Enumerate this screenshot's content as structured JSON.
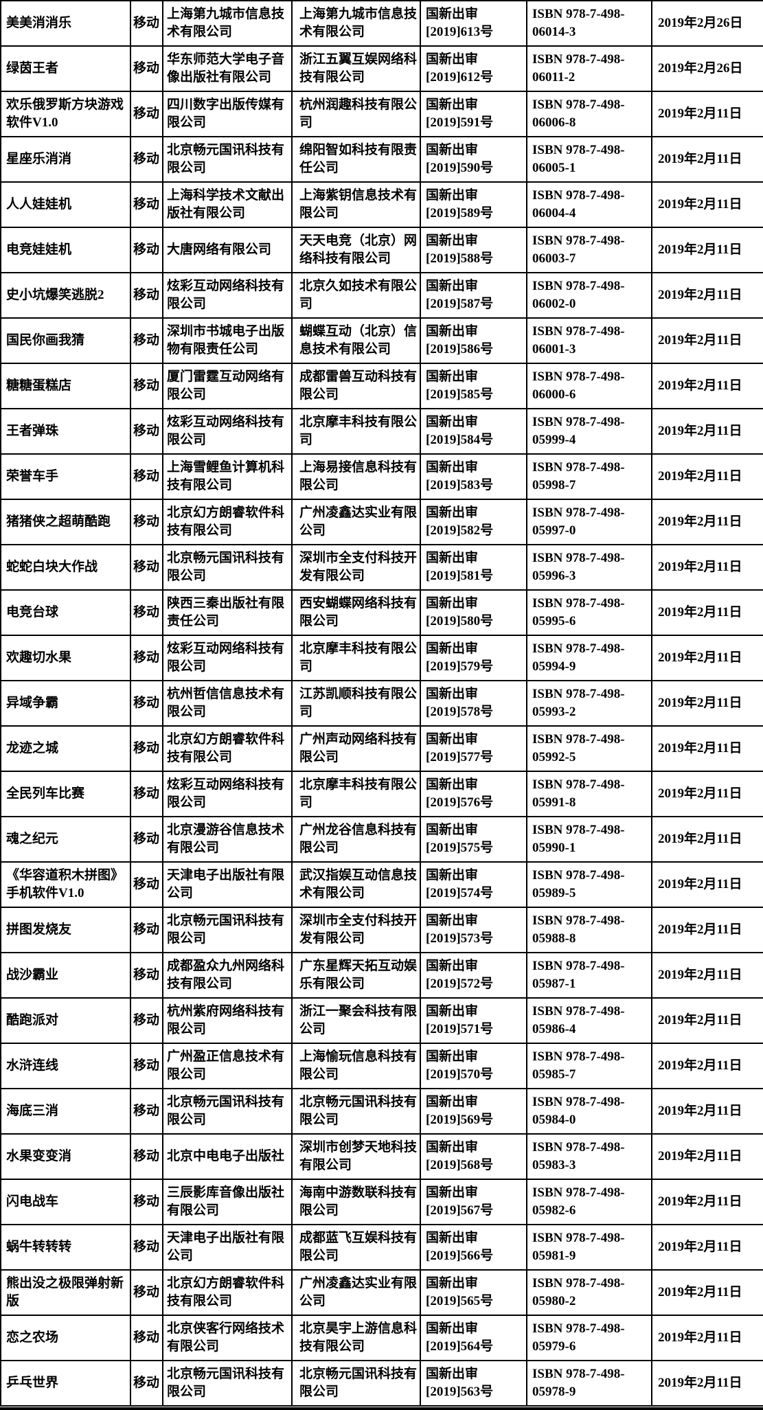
{
  "colors": {
    "border": "#000000",
    "background": "#ffffff",
    "text": "#000000"
  },
  "table": {
    "rows": [
      {
        "name": "美美消消乐",
        "platform": "移动",
        "publisher": "上海第九城市信息技术有限公司",
        "operator": "上海第九城市信息技术有限公司",
        "approval_no": "国新出审[2019]613号",
        "isbn": "ISBN 978-7-498-06014-3",
        "date": "2019年2月26日"
      },
      {
        "name": "绿茵王者",
        "platform": "移动",
        "publisher": "华东师范大学电子音像出版社有限公司",
        "operator": "浙江五翼互娱网络科技有限公司",
        "approval_no": "国新出审[2019]612号",
        "isbn": "ISBN 978-7-498-06011-2",
        "date": "2019年2月26日"
      },
      {
        "name": "欢乐俄罗斯方块游戏软件V1.0",
        "platform": "移动",
        "publisher": "四川数字出版传媒有限公司",
        "operator": "杭州润趣科技有限公司",
        "approval_no": "国新出审[2019]591号",
        "isbn": "ISBN 978-7-498-06006-8",
        "date": "2019年2月11日"
      },
      {
        "name": "星座乐消消",
        "platform": "移动",
        "publisher": "北京畅元国讯科技有限公司",
        "operator": "绵阳智如科技有限责任公司",
        "approval_no": "国新出审[2019]590号",
        "isbn": "ISBN 978-7-498-06005-1",
        "date": "2019年2月11日"
      },
      {
        "name": "人人娃娃机",
        "platform": "移动",
        "publisher": "上海科学技术文献出版社有限公司",
        "operator": "上海紫钥信息技术有限公司",
        "approval_no": "国新出审[2019]589号",
        "isbn": "ISBN 978-7-498-06004-4",
        "date": "2019年2月11日"
      },
      {
        "name": "电竞娃娃机",
        "platform": "移动",
        "publisher": "大唐网络有限公司",
        "operator": "天天电竞（北京）网络科技有限公司",
        "approval_no": "国新出审[2019]588号",
        "isbn": "ISBN 978-7-498-06003-7",
        "date": "2019年2月11日"
      },
      {
        "name": "史小坑爆笑逃脱2",
        "platform": "移动",
        "publisher": "炫彩互动网络科技有限公司",
        "operator": "北京久如技术有限公司",
        "approval_no": "国新出审[2019]587号",
        "isbn": "ISBN 978-7-498-06002-0",
        "date": "2019年2月11日"
      },
      {
        "name": "国民你画我猜",
        "platform": "移动",
        "publisher": "深圳市书城电子出版物有限责任公司",
        "operator": "蝴蝶互动（北京）信息技术有限公司",
        "approval_no": "国新出审[2019]586号",
        "isbn": "ISBN 978-7-498-06001-3",
        "date": "2019年2月11日"
      },
      {
        "name": "糖糖蛋糕店",
        "platform": "移动",
        "publisher": "厦门雷霆互动网络有限公司",
        "operator": "成都雷兽互动科技有限公司",
        "approval_no": "国新出审[2019]585号",
        "isbn": "ISBN 978-7-498-06000-6",
        "date": "2019年2月11日"
      },
      {
        "name": "王者弹珠",
        "platform": "移动",
        "publisher": "炫彩互动网络科技有限公司",
        "operator": "北京摩丰科技有限公司",
        "approval_no": "国新出审[2019]584号",
        "isbn": "ISBN 978-7-498-05999-4",
        "date": "2019年2月11日"
      },
      {
        "name": "荣誉车手",
        "platform": "移动",
        "publisher": "上海雪鲤鱼计算机科技有限公司",
        "operator": "上海易接信息科技有限公司",
        "approval_no": "国新出审[2019]583号",
        "isbn": "ISBN 978-7-498-05998-7",
        "date": "2019年2月11日"
      },
      {
        "name": "猪猪侠之超萌酷跑",
        "platform": "移动",
        "publisher": "北京幻方朗睿软件科技有限公司",
        "operator": "广州凌鑫达实业有限公司",
        "approval_no": "国新出审[2019]582号",
        "isbn": "ISBN 978-7-498-05997-0",
        "date": "2019年2月11日"
      },
      {
        "name": "蛇蛇白块大作战",
        "platform": "移动",
        "publisher": "北京畅元国讯科技有限公司",
        "operator": "深圳市全支付科技开发有限公司",
        "approval_no": "国新出审[2019]581号",
        "isbn": "ISBN 978-7-498-05996-3",
        "date": "2019年2月11日"
      },
      {
        "name": "电竞台球",
        "platform": "移动",
        "publisher": "陕西三秦出版社有限责任公司",
        "operator": "西安蝴蝶网络科技有限公司",
        "approval_no": "国新出审[2019]580号",
        "isbn": "ISBN 978-7-498-05995-6",
        "date": "2019年2月11日"
      },
      {
        "name": "欢趣切水果",
        "platform": "移动",
        "publisher": "炫彩互动网络科技有限公司",
        "operator": "北京摩丰科技有限公司",
        "approval_no": "国新出审[2019]579号",
        "isbn": "ISBN 978-7-498-05994-9",
        "date": "2019年2月11日"
      },
      {
        "name": "异域争霸",
        "platform": "移动",
        "publisher": "杭州哲信信息技术有限公司",
        "operator": "江苏凯顺科技有限公司",
        "approval_no": "国新出审[2019]578号",
        "isbn": "ISBN 978-7-498-05993-2",
        "date": "2019年2月11日"
      },
      {
        "name": "龙迹之城",
        "platform": "移动",
        "publisher": "北京幻方朗睿软件科技有限公司",
        "operator": "广州声动网络科技有限公司",
        "approval_no": "国新出审[2019]577号",
        "isbn": "ISBN 978-7-498-05992-5",
        "date": "2019年2月11日"
      },
      {
        "name": "全民列车比赛",
        "platform": "移动",
        "publisher": "炫彩互动网络科技有限公司",
        "operator": "北京摩丰科技有限公司",
        "approval_no": "国新出审[2019]576号",
        "isbn": "ISBN 978-7-498-05991-8",
        "date": "2019年2月11日"
      },
      {
        "name": "魂之纪元",
        "platform": "移动",
        "publisher": "北京漫游谷信息技术有限公司",
        "operator": "广州龙谷信息科技有限公司",
        "approval_no": "国新出审[2019]575号",
        "isbn": "ISBN 978-7-498-05990-1",
        "date": "2019年2月11日"
      },
      {
        "name": "《华容道积木拼图》手机软件V1.0",
        "platform": "移动",
        "publisher": "天津电子出版社有限公司",
        "operator": "武汉指娱互动信息技术有限公司",
        "approval_no": "国新出审[2019]574号",
        "isbn": "ISBN 978-7-498-05989-5",
        "date": "2019年2月11日"
      },
      {
        "name": "拼图发烧友",
        "platform": "移动",
        "publisher": "北京畅元国讯科技有限公司",
        "operator": "深圳市全支付科技开发有限公司",
        "approval_no": "国新出审[2019]573号",
        "isbn": "ISBN 978-7-498-05988-8",
        "date": "2019年2月11日"
      },
      {
        "name": "战沙霸业",
        "platform": "移动",
        "publisher": "成都盈众九州网络科技有限公司",
        "operator": "广东星辉天拓互动娱乐有限公司",
        "approval_no": "国新出审[2019]572号",
        "isbn": "ISBN 978-7-498-05987-1",
        "date": "2019年2月11日"
      },
      {
        "name": "酷跑派对",
        "platform": "移动",
        "publisher": "杭州紫府网络科技有限公司",
        "operator": "浙江一聚会科技有限公司",
        "approval_no": "国新出审[2019]571号",
        "isbn": "ISBN 978-7-498-05986-4",
        "date": "2019年2月11日"
      },
      {
        "name": "水浒连线",
        "platform": "移动",
        "publisher": "广州盈正信息技术有限公司",
        "operator": "上海愉玩信息科技有限公司",
        "approval_no": "国新出审[2019]570号",
        "isbn": "ISBN 978-7-498-05985-7",
        "date": "2019年2月11日"
      },
      {
        "name": "海底三消",
        "platform": "移动",
        "publisher": "北京畅元国讯科技有限公司",
        "operator": "北京畅元国讯科技有限公司",
        "approval_no": "国新出审[2019]569号",
        "isbn": "ISBN 978-7-498-05984-0",
        "date": "2019年2月11日"
      },
      {
        "name": "水果变变消",
        "platform": "移动",
        "publisher": "北京中电电子出版社",
        "operator": "深圳市创梦天地科技有限公司",
        "approval_no": "国新出审[2019]568号",
        "isbn": "ISBN 978-7-498-05983-3",
        "date": "2019年2月11日"
      },
      {
        "name": "闪电战车",
        "platform": "移动",
        "publisher": "三辰影库音像出版社有限公司",
        "operator": "海南中游数联科技有限公司",
        "approval_no": "国新出审[2019]567号",
        "isbn": "ISBN 978-7-498-05982-6",
        "date": "2019年2月11日"
      },
      {
        "name": "蜗牛转转转",
        "platform": "移动",
        "publisher": "天津电子出版社有限公司",
        "operator": "成都蓝飞互娱科技有限公司",
        "approval_no": "国新出审[2019]566号",
        "isbn": "ISBN 978-7-498-05981-9",
        "date": "2019年2月11日"
      },
      {
        "name": "熊出没之极限弹射新版",
        "platform": "移动",
        "publisher": "北京幻方朗睿软件科技有限公司",
        "operator": "广州凌鑫达实业有限公司",
        "approval_no": "国新出审[2019]565号",
        "isbn": "ISBN 978-7-498-05980-2",
        "date": "2019年2月11日"
      },
      {
        "name": "恋之农场",
        "platform": "移动",
        "publisher": "北京侠客行网络技术有限公司",
        "operator": "北京昊宇上游信息科技有限公司",
        "approval_no": "国新出审[2019]564号",
        "isbn": "ISBN 978-7-498-05979-6",
        "date": "2019年2月11日"
      },
      {
        "name": "乒乓世界",
        "platform": "移动",
        "publisher": "北京畅元国讯科技有限公司",
        "operator": "北京畅元国讯科技有限公司",
        "approval_no": "国新出审[2019]563号",
        "isbn": "ISBN 978-7-498-05978-9",
        "date": "2019年2月11日"
      }
    ]
  }
}
